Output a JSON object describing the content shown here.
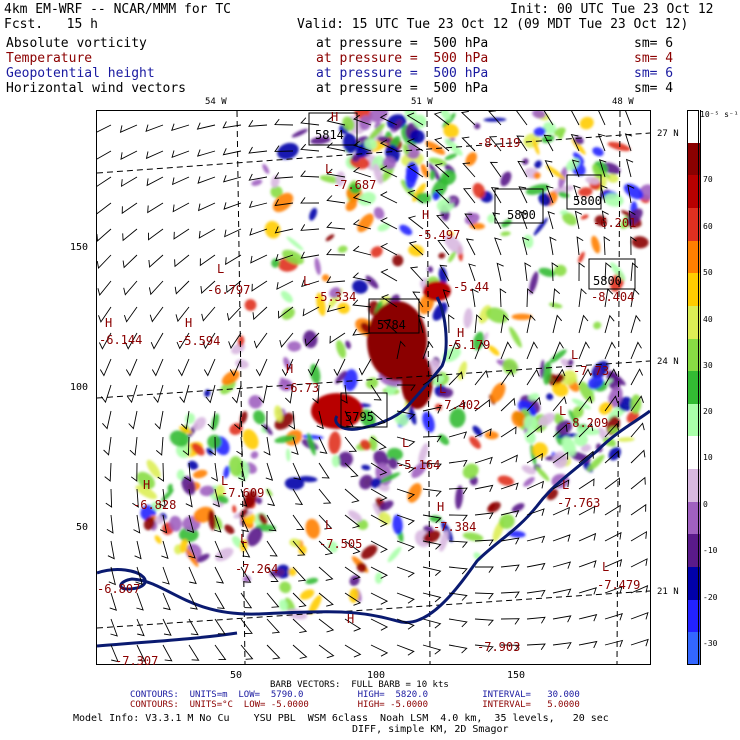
{
  "header": {
    "model_title": "4km EM-WRF -- NCAR/MMM for TC",
    "init": "Init: 00 UTC Tue 23 Oct 12",
    "fcst": "Fcst.   15 h",
    "valid": "Valid: 15 UTC Tue 23 Oct 12 (09 MDT Tue 23 Oct 12)"
  },
  "fields": [
    {
      "name": "Absolute vorticity",
      "pressure": "at pressure =  500 hPa",
      "sm": "sm= 6",
      "color": "#000000"
    },
    {
      "name": "Temperature",
      "pressure": "at pressure =  500 hPa",
      "sm": "sm= 4",
      "color": "#8b0000"
    },
    {
      "name": "Geopotential height",
      "pressure": "at pressure =  500 hPa",
      "sm": "sm= 6",
      "color": "#1a1aa0"
    },
    {
      "name": "Horizontal wind vectors",
      "pressure": "at pressure =  500 hPa",
      "sm": "sm= 4",
      "color": "#000000"
    }
  ],
  "axes": {
    "lon_labels": [
      "54 W",
      "51 W",
      "48 W"
    ],
    "lat_labels": [
      "27 N",
      "24 N",
      "21 N"
    ],
    "y_ticks": [
      "150",
      "100",
      "50"
    ],
    "x_ticks": [
      "50",
      "100",
      "150"
    ]
  },
  "colorbar": {
    "unit": "10⁻⁵ s⁻¹",
    "labels": [
      "70",
      "60",
      "50",
      "40",
      "30",
      "20",
      "10",
      "0",
      "-10",
      "-20",
      "-30"
    ],
    "colors": [
      "#ffffff",
      "#8b0000",
      "#b80000",
      "#e03020",
      "#ff7f00",
      "#ffcc00",
      "#ddee55",
      "#88dd44",
      "#33bb33",
      "#aaffaa",
      "#ffffff",
      "#d8b8e0",
      "#a060c0",
      "#5a1a8a",
      "#0000aa",
      "#2222ff",
      "#3366ff"
    ]
  },
  "map_labels": {
    "highs_lows": [
      "H",
      "L",
      "H",
      "L",
      "L",
      "H",
      "H",
      "H",
      "L",
      "H",
      "L",
      "L",
      "L",
      "H",
      "L",
      "L",
      "H",
      "L",
      "L",
      "L",
      "H"
    ],
    "temps": [
      "-8.119",
      "-7.687",
      "-5.497",
      "-6.797",
      "-5.334",
      "-5.44",
      "-8.404",
      "-6.144",
      "-5.594",
      "-5.179",
      "-7.73",
      "-6.73",
      "-7.402",
      "-8.209",
      "-5.164",
      "-6.828",
      "-7.609",
      "-7.763",
      "-7.384",
      "-7.505",
      "-7.264",
      "-7.479",
      "-7.903",
      "-6.807",
      "-7.307",
      "-6.201"
    ],
    "heights": [
      "5814",
      "5800",
      "5800",
      "5800",
      "5784",
      "5795"
    ]
  },
  "footer": {
    "barb": "BARB VECTORS:  FULL BARB = 10 kts",
    "contours1": "CONTOURS:  UNITS=m  LOW=  5790.0          HIGH=  5820.0          INTERVAL=   30.000",
    "contours2": "CONTOURS:  UNITS=°C  LOW= -5.0000         HIGH= -5.0000          INTERVAL=   5.0000",
    "model_info": "Model Info: V3.3.1 M No Cu    YSU PBL  WSM 6class  Noah LSM  4.0 km,  35 levels,   20 sec",
    "model_info2": "DIFF, simple KM, 2D Smagor"
  }
}
